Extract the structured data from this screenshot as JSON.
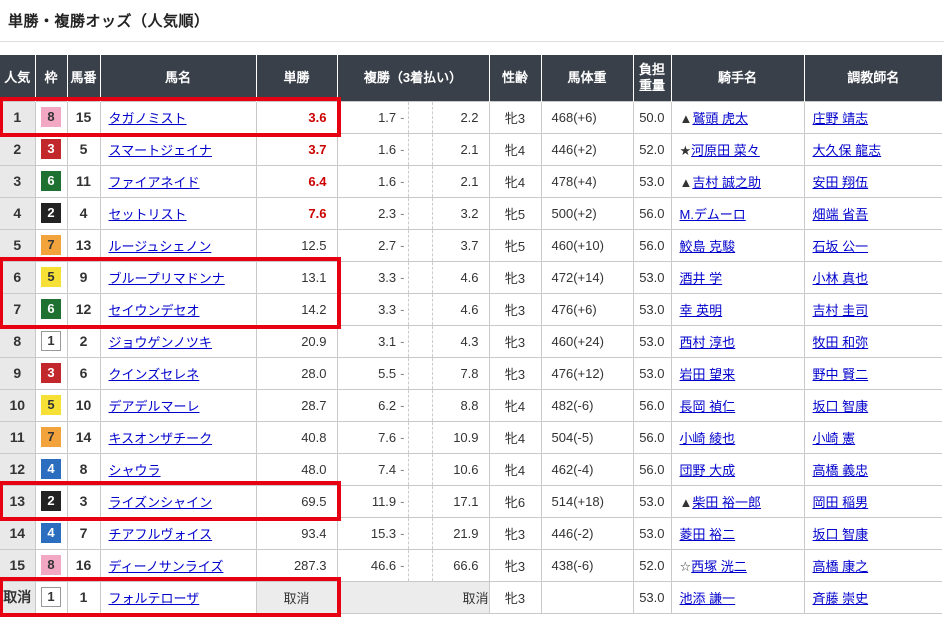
{
  "title": "単勝・複勝オッズ（人気順）",
  "cancel_label": "取消",
  "table": {
    "headers": {
      "rank": "人気",
      "bracket": "枠",
      "number": "馬番",
      "name": "馬名",
      "win": "単勝",
      "place": "複勝（3着払い）",
      "sex_age": "性齢",
      "weight": "馬体重",
      "carried": "負担重量",
      "jockey": "騎手名",
      "trainer": "調教師名"
    },
    "rows": [
      {
        "rank": "1",
        "bracket": 8,
        "number": "15",
        "name": "タガノミスト",
        "win": "3.6",
        "win_hot": true,
        "place_min": "1.7",
        "place_max": "2.2",
        "sex_age": "牝3",
        "weight": "468(+6)",
        "carried": "50.0",
        "jockey_mark": "▲",
        "jockey": "鷲頭 虎太",
        "trainer": "庄野 靖志"
      },
      {
        "rank": "2",
        "bracket": 3,
        "number": "5",
        "name": "スマートジェイナ",
        "win": "3.7",
        "win_hot": true,
        "place_min": "1.6",
        "place_max": "2.1",
        "sex_age": "牝4",
        "weight": "446(+2)",
        "carried": "52.0",
        "jockey_mark": "★",
        "jockey": "河原田 菜々",
        "trainer": "大久保 龍志"
      },
      {
        "rank": "3",
        "bracket": 6,
        "number": "11",
        "name": "ファイアネイド",
        "win": "6.4",
        "win_hot": true,
        "place_min": "1.6",
        "place_max": "2.1",
        "sex_age": "牝4",
        "weight": "478(+4)",
        "carried": "53.0",
        "jockey_mark": "▲",
        "jockey": "吉村 誠之助",
        "trainer": "安田 翔伍"
      },
      {
        "rank": "4",
        "bracket": 2,
        "number": "4",
        "name": "セットリスト",
        "win": "7.6",
        "win_hot": true,
        "place_min": "2.3",
        "place_max": "3.2",
        "sex_age": "牝5",
        "weight": "500(+2)",
        "carried": "56.0",
        "jockey_mark": "",
        "jockey": "M.デムーロ",
        "trainer": "畑端 省吾"
      },
      {
        "rank": "5",
        "bracket": 7,
        "number": "13",
        "name": "ルージュシェノン",
        "win": "12.5",
        "win_hot": false,
        "place_min": "2.7",
        "place_max": "3.7",
        "sex_age": "牝5",
        "weight": "460(+10)",
        "carried": "56.0",
        "jockey_mark": "",
        "jockey": "鮫島 克駿",
        "trainer": "石坂 公一"
      },
      {
        "rank": "6",
        "bracket": 5,
        "number": "9",
        "name": "ブループリマドンナ",
        "win": "13.1",
        "win_hot": false,
        "place_min": "3.3",
        "place_max": "4.6",
        "sex_age": "牝3",
        "weight": "472(+14)",
        "carried": "53.0",
        "jockey_mark": "",
        "jockey": "酒井 学",
        "trainer": "小林 真也"
      },
      {
        "rank": "7",
        "bracket": 6,
        "number": "12",
        "name": "セイウンデセオ",
        "win": "14.2",
        "win_hot": false,
        "place_min": "3.3",
        "place_max": "4.6",
        "sex_age": "牝3",
        "weight": "476(+6)",
        "carried": "53.0",
        "jockey_mark": "",
        "jockey": "幸 英明",
        "trainer": "吉村 圭司"
      },
      {
        "rank": "8",
        "bracket": 1,
        "number": "2",
        "name": "ジョウゲンノツキ",
        "win": "20.9",
        "win_hot": false,
        "place_min": "3.1",
        "place_max": "4.3",
        "sex_age": "牝3",
        "weight": "460(+24)",
        "carried": "53.0",
        "jockey_mark": "",
        "jockey": "西村 淳也",
        "trainer": "牧田 和弥"
      },
      {
        "rank": "9",
        "bracket": 3,
        "number": "6",
        "name": "クインズセレネ",
        "win": "28.0",
        "win_hot": false,
        "place_min": "5.5",
        "place_max": "7.8",
        "sex_age": "牝3",
        "weight": "476(+12)",
        "carried": "53.0",
        "jockey_mark": "",
        "jockey": "岩田 望来",
        "trainer": "野中 賢二"
      },
      {
        "rank": "10",
        "bracket": 5,
        "number": "10",
        "name": "デアデルマーレ",
        "win": "28.7",
        "win_hot": false,
        "place_min": "6.2",
        "place_max": "8.8",
        "sex_age": "牝4",
        "weight": "482(-6)",
        "carried": "56.0",
        "jockey_mark": "",
        "jockey": "長岡 禎仁",
        "trainer": "坂口 智康"
      },
      {
        "rank": "11",
        "bracket": 7,
        "number": "14",
        "name": "キスオンザチーク",
        "win": "40.8",
        "win_hot": false,
        "place_min": "7.6",
        "place_max": "10.9",
        "sex_age": "牝4",
        "weight": "504(-5)",
        "carried": "56.0",
        "jockey_mark": "",
        "jockey": "小崎 綾也",
        "trainer": "小崎 憲"
      },
      {
        "rank": "12",
        "bracket": 4,
        "number": "8",
        "name": "シャウラ",
        "win": "48.0",
        "win_hot": false,
        "place_min": "7.4",
        "place_max": "10.6",
        "sex_age": "牝4",
        "weight": "462(-4)",
        "carried": "56.0",
        "jockey_mark": "",
        "jockey": "団野 大成",
        "trainer": "高橋 義忠"
      },
      {
        "rank": "13",
        "bracket": 2,
        "number": "3",
        "name": "ライズンシャイン",
        "win": "69.5",
        "win_hot": false,
        "place_min": "11.9",
        "place_max": "17.1",
        "sex_age": "牝6",
        "weight": "514(+18)",
        "carried": "53.0",
        "jockey_mark": "▲",
        "jockey": "柴田 裕一郎",
        "trainer": "岡田 稲男"
      },
      {
        "rank": "14",
        "bracket": 4,
        "number": "7",
        "name": "チアフルヴォイス",
        "win": "93.4",
        "win_hot": false,
        "place_min": "15.3",
        "place_max": "21.9",
        "sex_age": "牝3",
        "weight": "446(-2)",
        "carried": "53.0",
        "jockey_mark": "",
        "jockey": "菱田 裕二",
        "trainer": "坂口 智康"
      },
      {
        "rank": "15",
        "bracket": 8,
        "number": "16",
        "name": "ディーノサンライズ",
        "win": "287.3",
        "win_hot": false,
        "place_min": "46.6",
        "place_max": "66.6",
        "sex_age": "牝3",
        "weight": "438(-6)",
        "carried": "52.0",
        "jockey_mark": "☆",
        "jockey": "西塚 洸二",
        "trainer": "高橋 康之"
      },
      {
        "rank": "取消",
        "bracket": 1,
        "number": "1",
        "name": "フォルテローザ",
        "win": "取消",
        "win_hot": false,
        "cancelled": true,
        "sex_age": "牝3",
        "weight": "",
        "carried": "53.0",
        "jockey_mark": "",
        "jockey": "池添 謙一",
        "trainer": "斉藤 崇史"
      }
    ],
    "highlight_groups": [
      {
        "start": 0,
        "end": 0
      },
      {
        "start": 5,
        "end": 6
      },
      {
        "start": 12,
        "end": 12
      },
      {
        "start": 15,
        "end": 15
      }
    ]
  },
  "colors": {
    "header_bg": "#394049",
    "accent_red": "#e60012",
    "odds_red": "#cc0000",
    "link_blue": "#0000cc",
    "rank_col_bg": "#e9e9e9",
    "bracket_colors": {
      "1": {
        "bg": "#ffffff",
        "fg": "#333333",
        "border": "#999999"
      },
      "2": {
        "bg": "#222222",
        "fg": "#ffffff"
      },
      "3": {
        "bg": "#c2282b",
        "fg": "#ffffff"
      },
      "4": {
        "bg": "#2b6ec0",
        "fg": "#ffffff"
      },
      "5": {
        "bg": "#f7e036",
        "fg": "#333333"
      },
      "6": {
        "bg": "#1e7130",
        "fg": "#ffffff"
      },
      "7": {
        "bg": "#f3a33c",
        "fg": "#333333"
      },
      "8": {
        "bg": "#f2a7c3",
        "fg": "#333333"
      }
    }
  }
}
